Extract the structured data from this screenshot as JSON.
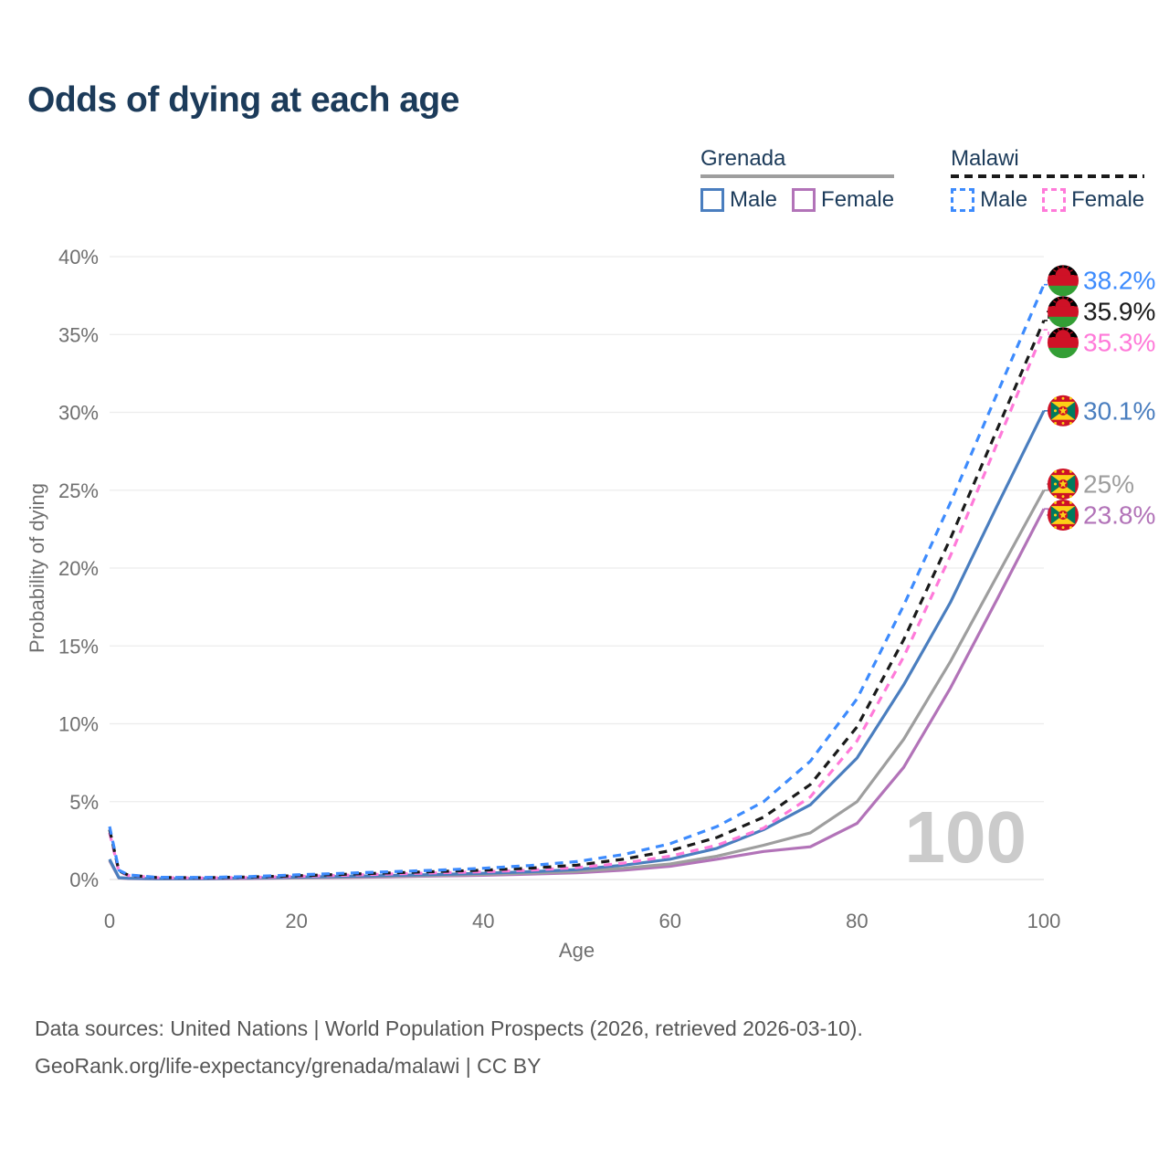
{
  "title": "Odds of dying at each age",
  "legend": {
    "groups": [
      {
        "country": "Grenada",
        "line_style": "solid",
        "underline_color": "#9e9e9e",
        "items": [
          {
            "label": "Male",
            "color": "#4a7ebf"
          },
          {
            "label": "Female",
            "color": "#b273b8"
          }
        ]
      },
      {
        "country": "Malawi",
        "line_style": "dashed",
        "underline_color": "#1a1a1a",
        "items": [
          {
            "label": "Male",
            "color": "#3d8bfd"
          },
          {
            "label": "Female",
            "color": "#ff7ad9"
          }
        ]
      }
    ]
  },
  "chart_data": {
    "type": "line",
    "title": "Odds of dying at each age",
    "xlabel": "Age",
    "ylabel": "Probability of dying",
    "xlim": [
      0,
      100
    ],
    "ylim_percent": [
      0,
      40
    ],
    "xticks": [
      0,
      20,
      40,
      60,
      80,
      100
    ],
    "yticks_percent": [
      0,
      5,
      10,
      15,
      20,
      25,
      30,
      35,
      40
    ],
    "grid": "horizontal",
    "watermark_age": "100",
    "x_ages": [
      0,
      1,
      2,
      5,
      10,
      15,
      20,
      25,
      30,
      35,
      40,
      45,
      50,
      55,
      60,
      65,
      70,
      75,
      80,
      85,
      90,
      95,
      100
    ],
    "series": [
      {
        "name": "Malawi Male",
        "country": "Malawi",
        "sex": "Male",
        "dash": true,
        "color": "#3d8bfd",
        "flag": "malawi",
        "end_label": "38.2%",
        "values_percent": [
          3.4,
          0.6,
          0.3,
          0.14,
          0.13,
          0.19,
          0.3,
          0.4,
          0.5,
          0.6,
          0.72,
          0.9,
          1.15,
          1.6,
          2.3,
          3.4,
          5.0,
          7.6,
          11.6,
          17.6,
          24.2,
          31.2,
          38.2
        ]
      },
      {
        "name": "Malawi Both sexes",
        "country": "Malawi",
        "sex": "Both",
        "dash": true,
        "color": "#1a1a1a",
        "flag": "malawi",
        "end_label": "35.9%",
        "values_percent": [
          3.2,
          0.55,
          0.28,
          0.13,
          0.11,
          0.16,
          0.24,
          0.33,
          0.42,
          0.51,
          0.6,
          0.73,
          0.92,
          1.3,
          1.85,
          2.7,
          4.0,
          6.1,
          9.8,
          15.4,
          21.9,
          28.9,
          35.9
        ]
      },
      {
        "name": "Malawi Female",
        "country": "Malawi",
        "sex": "Female",
        "dash": true,
        "color": "#ff7ad9",
        "flag": "malawi",
        "end_label": "35.3%",
        "values_percent": [
          3.0,
          0.5,
          0.26,
          0.12,
          0.1,
          0.13,
          0.2,
          0.27,
          0.35,
          0.43,
          0.5,
          0.6,
          0.76,
          1.05,
          1.5,
          2.2,
          3.3,
          5.3,
          8.9,
          14.3,
          20.8,
          28.0,
          35.3
        ]
      },
      {
        "name": "Grenada Male",
        "country": "Grenada",
        "sex": "Male",
        "dash": false,
        "color": "#4a7ebf",
        "flag": "grenada",
        "end_label": "30.1%",
        "values_percent": [
          1.3,
          0.12,
          0.08,
          0.05,
          0.06,
          0.1,
          0.15,
          0.2,
          0.26,
          0.32,
          0.4,
          0.5,
          0.64,
          0.92,
          1.3,
          2.0,
          3.2,
          4.8,
          7.8,
          12.5,
          17.8,
          24.0,
          30.1
        ]
      },
      {
        "name": "Grenada Both sexes",
        "country": "Grenada",
        "sex": "Both",
        "dash": false,
        "color": "#9e9e9e",
        "flag": "grenada",
        "end_label": "25%",
        "values_percent": [
          1.25,
          0.11,
          0.07,
          0.05,
          0.05,
          0.08,
          0.12,
          0.16,
          0.21,
          0.27,
          0.33,
          0.41,
          0.52,
          0.72,
          1.0,
          1.5,
          2.2,
          3.0,
          5.0,
          9.0,
          14.0,
          19.5,
          25.0
        ]
      },
      {
        "name": "Grenada Female",
        "country": "Grenada",
        "sex": "Female",
        "dash": false,
        "color": "#b273b8",
        "flag": "grenada",
        "end_label": "23.8%",
        "values_percent": [
          1.2,
          0.1,
          0.06,
          0.04,
          0.04,
          0.06,
          0.1,
          0.13,
          0.17,
          0.22,
          0.27,
          0.34,
          0.43,
          0.6,
          0.85,
          1.3,
          1.8,
          2.1,
          3.6,
          7.2,
          12.3,
          18.0,
          23.8
        ]
      }
    ],
    "flag_colors": {
      "malawi": {
        "black": "#000000",
        "red": "#ce1126",
        "green": "#339e35"
      },
      "grenada": {
        "red": "#ce1126",
        "yellow": "#fcd116",
        "green": "#007a5e"
      }
    }
  },
  "footer": {
    "line1": "Data sources: United Nations | World Population Prospects (2026, retrieved 2026-03-10).",
    "line2": "GeoRank.org/life-expectancy/grenada/malawi | CC BY"
  }
}
